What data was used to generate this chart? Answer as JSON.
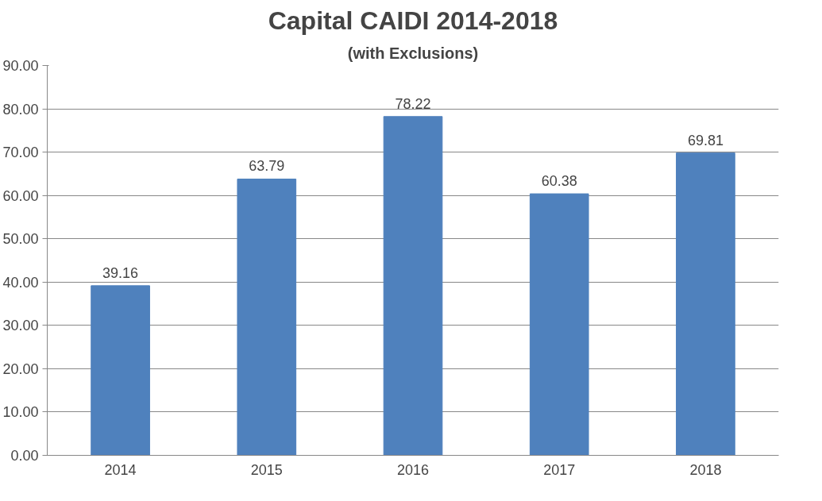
{
  "chart_data": {
    "type": "bar",
    "title": "Capital CAIDI 2014-2018",
    "subtitle": "(with Exclusions)",
    "categories": [
      "2014",
      "2015",
      "2016",
      "2017",
      "2018"
    ],
    "values": [
      39.16,
      63.79,
      78.22,
      60.38,
      69.81
    ],
    "color": "#4f81bd",
    "ylim": [
      0,
      90
    ],
    "yticks": [
      {
        "value": 0,
        "label": "0.00"
      },
      {
        "value": 10,
        "label": "10.00"
      },
      {
        "value": 20,
        "label": "20.00"
      },
      {
        "value": 30,
        "label": "30.00"
      },
      {
        "value": 40,
        "label": "40.00"
      },
      {
        "value": 50,
        "label": "50.00"
      },
      {
        "value": 60,
        "label": "60.00"
      },
      {
        "value": 70,
        "label": "70.00"
      },
      {
        "value": 80,
        "label": "80.00"
      },
      {
        "value": 90,
        "label": "90.00"
      }
    ],
    "grid": "y",
    "data_labels": true
  }
}
